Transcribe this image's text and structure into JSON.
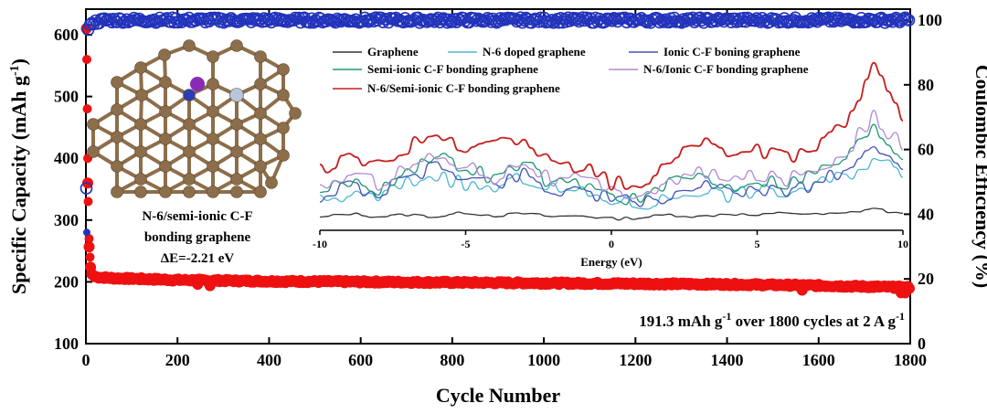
{
  "chart_data": [
    {
      "type": "scatter",
      "xlabel": "Cycle Number",
      "ylabel_left": "Specific Capacity (mAh g",
      "ylabel_left_sup": "-1",
      "ylabel_left_end": ")",
      "ylabel_right": "Coulombic Efficiency (%)",
      "xlim": [
        0,
        1800
      ],
      "ylim_left": [
        100,
        650
      ],
      "ylim_right": [
        0,
        105
      ],
      "x_ticks": [
        "0",
        "200",
        "400",
        "600",
        "800",
        "1000",
        "1200",
        "1400",
        "1600",
        "1800"
      ],
      "y_left_ticks": [
        "100",
        "200",
        "300",
        "400",
        "500",
        "600"
      ],
      "y_right_ticks": [
        "0",
        "20",
        "40",
        "60",
        "80",
        "100"
      ],
      "series": [
        {
          "axis": "left",
          "color": "#ee1111",
          "marker": "filled-circle",
          "points": [
            [
              1,
              610
            ],
            [
              2,
              530
            ],
            [
              3,
              420
            ],
            [
              5,
              300
            ],
            [
              8,
              235
            ],
            [
              12,
              213
            ],
            [
              20,
              208
            ],
            [
              60,
              206
            ],
            [
              200,
              203
            ],
            [
              400,
              201
            ],
            [
              600,
              200
            ],
            [
              800,
              199
            ],
            [
              1000,
              198
            ],
            [
              1200,
              197
            ],
            [
              1400,
              196
            ],
            [
              1600,
              194
            ],
            [
              1790,
              191
            ]
          ]
        },
        {
          "axis": "right",
          "color": "#2233bb",
          "marker": "open-circle",
          "points": [
            [
              1,
              48
            ],
            [
              2,
              93
            ],
            [
              3,
              95
            ],
            [
              5,
              97
            ],
            [
              10,
              99
            ],
            [
              40,
              100
            ],
            [
              200,
              100
            ],
            [
              600,
              100
            ],
            [
              1000,
              100
            ],
            [
              1400,
              100
            ],
            [
              1800,
              100
            ]
          ]
        }
      ],
      "annotations": {
        "capacity_text_pre": "191.3 mAh g",
        "capacity_sup1": "-1",
        "capacity_text_mid": " over 1800 cycles at 2 A g",
        "capacity_sup2": "-1"
      }
    },
    {
      "type": "line",
      "xlabel": "Energy (eV)",
      "xlim": [
        -10,
        10
      ],
      "x_ticks": [
        "-10",
        "-5",
        "0",
        "5",
        "10"
      ],
      "legend": [
        {
          "name": "Graphene",
          "color": "#333333"
        },
        {
          "name": "N-6 doped graphene",
          "color": "#4fb8d0"
        },
        {
          "name": "Ionic C-F boning graphene",
          "color": "#4455bb"
        },
        {
          "name": "Semi-ionic C-F bonding graphene",
          "color": "#1e9a6e"
        },
        {
          "name": "N-6/Ionic C-F bonding graphene",
          "color": "#b08ad8"
        },
        {
          "name": "N-6/Semi-ionic C-F bonding graphene",
          "color": "#c81e1e"
        }
      ],
      "series": [
        {
          "name": "Graphene",
          "color": "#333333",
          "x": [
            -10,
            -9,
            -8,
            -7,
            -6,
            -5,
            -4,
            -3,
            -2,
            -1,
            0,
            1,
            2,
            3,
            4,
            5,
            6,
            7,
            8,
            9,
            10
          ],
          "y": [
            0.5,
            0.9,
            0.6,
            0.8,
            0.6,
            1.0,
            0.7,
            0.9,
            0.6,
            0.7,
            0.4,
            0.5,
            0.8,
            0.6,
            0.9,
            0.7,
            1.0,
            0.8,
            0.9,
            1.4,
            0.8
          ]
        },
        {
          "name": "N-6 doped graphene",
          "color": "#4fb8d0",
          "x": [
            -10,
            -9,
            -8,
            -7,
            -6,
            -5,
            -4,
            -3,
            -2,
            -1,
            0,
            1,
            2,
            3,
            4,
            5,
            6,
            7,
            8,
            9,
            10
          ],
          "y": [
            2,
            2.6,
            2.4,
            3.8,
            4.6,
            3.6,
            3.2,
            4.3,
            3.2,
            2.8,
            2.2,
            1.6,
            2.4,
            3.2,
            2.6,
            3.1,
            2.8,
            3.6,
            4.5,
            6.0,
            5.0
          ]
        },
        {
          "name": "Ionic C-F boning graphene",
          "color": "#4455bb",
          "x": [
            -10,
            -9,
            -8,
            -7,
            -6,
            -5,
            -4,
            -3,
            -2,
            -1,
            0,
            1,
            2,
            3,
            4,
            5,
            6,
            7,
            8,
            9,
            10
          ],
          "y": [
            2.4,
            3.6,
            2.8,
            4.2,
            5.4,
            4.6,
            3.6,
            4.8,
            3.0,
            3.2,
            2.2,
            1.8,
            2.6,
            3.6,
            2.8,
            3.4,
            3.0,
            3.8,
            5.0,
            7.0,
            5.6
          ]
        },
        {
          "name": "Semi-ionic C-F bonding graphene",
          "color": "#1e9a6e",
          "x": [
            -10,
            -9,
            -8,
            -7,
            -6,
            -5,
            -4,
            -3,
            -2,
            -1,
            0,
            1,
            2,
            3,
            4,
            5,
            6,
            7,
            8,
            9,
            10
          ],
          "y": [
            3.0,
            4.0,
            3.2,
            5.2,
            6.2,
            5.4,
            4.2,
            5.8,
            3.6,
            3.8,
            2.6,
            2.2,
            3.6,
            4.6,
            3.4,
            4.2,
            3.8,
            4.8,
            6.2,
            9.0,
            6.4
          ]
        },
        {
          "name": "N-6/Ionic C-F bonding graphene",
          "color": "#b08ad8",
          "x": [
            -10,
            -9,
            -8,
            -7,
            -6,
            -5,
            -4,
            -3,
            -2,
            -1,
            0,
            1,
            2,
            3,
            4,
            5,
            6,
            7,
            8,
            9,
            10
          ],
          "y": [
            3.4,
            4.6,
            3.8,
            5.4,
            6.4,
            5.6,
            4.4,
            6.0,
            4.0,
            4.2,
            3.0,
            2.8,
            3.8,
            4.8,
            4.0,
            4.6,
            4.2,
            5.2,
            6.6,
            10.2,
            7.2
          ]
        },
        {
          "name": "N-6/Semi-ionic C-F bonding graphene",
          "color": "#c81e1e",
          "x": [
            -10,
            -9,
            -8,
            -7,
            -6,
            -5,
            -4,
            -3,
            -2,
            -1,
            0,
            1,
            2,
            3,
            4,
            5,
            6,
            7,
            8,
            9,
            10
          ],
          "y": [
            5.0,
            6.2,
            5.4,
            7.2,
            9.0,
            7.0,
            8.2,
            7.4,
            5.8,
            5.4,
            3.8,
            3.6,
            5.6,
            7.8,
            6.6,
            6.8,
            6.2,
            7.4,
            9.6,
            14.6,
            9.8
          ]
        }
      ]
    }
  ],
  "molecule": {
    "label_line1": "N-6/semi-ionic C-F",
    "label_line2": "bonding graphene",
    "label_line3": "ΔE=-2.21 eV",
    "atom_colors": {
      "carbon": "#8d6e4b",
      "nitrogen": "#2b3fb5",
      "fluorine": "#b8c6dc",
      "lithium": "#8a2bb8"
    }
  }
}
